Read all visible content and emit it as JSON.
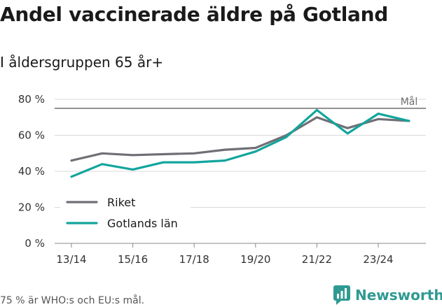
{
  "title": "Andel vaccinerade äldre på Gotland",
  "subtitle": "I åldersgruppen 65 år+",
  "footnote": "75 % är WHO:s och EU:s mål.",
  "brand": "Newsworthy",
  "colors": {
    "riket": "#706f76",
    "gotland": "#12a59c",
    "target": "#6e6e6e",
    "grid": "#d9d9d9",
    "brand": "#2f9a92"
  },
  "chart_data": {
    "type": "line",
    "title": "Andel vaccinerade äldre på Gotland",
    "subtitle": "I åldersgruppen 65 år+",
    "xlabel": "",
    "ylabel": "",
    "ylim": [
      0,
      80
    ],
    "yticks": [
      0,
      20,
      40,
      60,
      80
    ],
    "ytick_labels": [
      "0 %",
      "20 %",
      "40 %",
      "60 %",
      "80 %"
    ],
    "x": [
      "13/14",
      "14/15",
      "15/16",
      "16/17",
      "17/18",
      "18/19",
      "19/20",
      "20/21",
      "21/22",
      "22/23",
      "23/24",
      "24/25"
    ],
    "xtick_labels": [
      "13/14",
      "15/16",
      "17/18",
      "19/20",
      "21/22",
      "23/24"
    ],
    "grid": true,
    "legend_position": "bottom-left",
    "target": {
      "value": 75,
      "label": "Mål"
    },
    "series": [
      {
        "name": "Riket",
        "values": [
          46,
          50,
          49,
          49.5,
          50,
          52,
          53,
          60,
          70,
          64,
          69,
          68
        ]
      },
      {
        "name": "Gotlands län",
        "values": [
          37,
          44,
          41,
          45,
          45,
          46,
          51,
          59,
          74,
          61,
          72,
          68
        ]
      }
    ]
  }
}
